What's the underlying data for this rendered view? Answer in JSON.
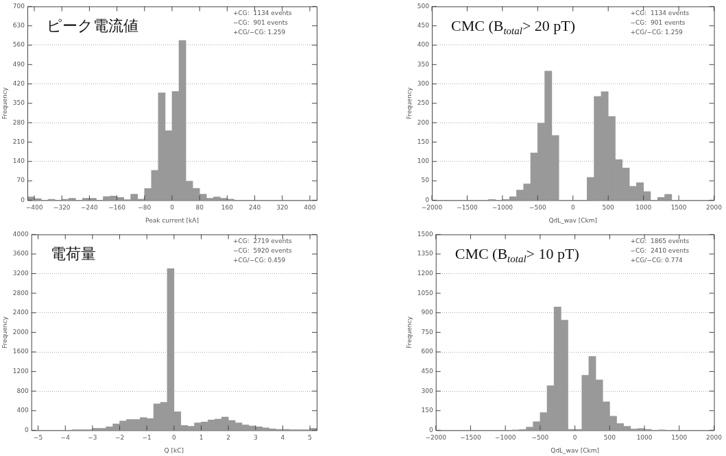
{
  "chart_data": [
    {
      "type": "histogram",
      "title": "ピーク電流値",
      "xlabel": "Peak current [kA]",
      "ylabel": "Frequency",
      "color": "#999999",
      "annotations": [
        "+CG:  1134 events",
        "−CG:  901 events",
        "+CG/−CG: 1.259"
      ],
      "bins": [
        -420,
        -400,
        -380,
        -360,
        -340,
        -320,
        -300,
        -280,
        -260,
        -240,
        -220,
        -200,
        -180,
        -160,
        -140,
        -120,
        -100,
        -80,
        -60,
        -40,
        -20,
        0,
        20,
        40,
        60,
        80,
        100,
        120,
        140,
        160,
        180,
        200,
        220,
        240,
        260,
        280,
        300,
        320,
        340,
        360,
        380,
        400,
        420
      ],
      "values": [
        12,
        6,
        0,
        3,
        0,
        3,
        7,
        0,
        7,
        7,
        0,
        13,
        15,
        10,
        2,
        22,
        4,
        42,
        108,
        388,
        251,
        393,
        577,
        69,
        43,
        22,
        7,
        12,
        7,
        4,
        0,
        0,
        0,
        0,
        0,
        0,
        0,
        0,
        0,
        0,
        0,
        0
      ],
      "xlim": [
        -420,
        420
      ],
      "xticks": [
        -400,
        -320,
        -240,
        -160,
        -80,
        0,
        80,
        160,
        240,
        320,
        400
      ],
      "ylim": [
        0,
        700
      ],
      "yticks": [
        0,
        70,
        140,
        210,
        280,
        350,
        420,
        490,
        560,
        630,
        700
      ],
      "grid": "y",
      "legend": false
    },
    {
      "type": "histogram",
      "title": "CMC (B$_{total}$> 20 pT)",
      "xlabel": "QdL_wav [Ckm]",
      "ylabel": "Frequency",
      "color": "#999999",
      "annotations": [
        "+CG:  1134 events",
        "−CG:  901 events",
        "+CG/−CG: 1.259"
      ],
      "bins": [
        -2000,
        -1900,
        -1800,
        -1700,
        -1600,
        -1500,
        -1400,
        -1300,
        -1200,
        -1100,
        -1000,
        -900,
        -800,
        -700,
        -600,
        -500,
        -400,
        -300,
        -200,
        -100,
        0,
        100,
        200,
        300,
        400,
        500,
        600,
        700,
        800,
        900,
        1000,
        1100,
        1200,
        1300,
        1400,
        1500,
        1600,
        1700,
        1800,
        1900,
        2000
      ],
      "values": [
        0,
        0,
        0,
        0,
        0,
        0,
        0,
        0,
        2,
        0,
        2,
        9,
        26,
        42,
        122,
        199,
        333,
        167,
        0,
        0,
        0,
        0,
        59,
        268,
        280,
        216,
        105,
        83,
        36,
        45,
        22,
        0,
        7,
        15,
        0,
        0,
        0,
        0,
        0,
        0
      ],
      "xlim": [
        -2000,
        2000
      ],
      "xticks": [
        -2000,
        -1500,
        -1000,
        -500,
        0,
        500,
        1000,
        1500,
        2000
      ],
      "ylim": [
        0,
        500
      ],
      "yticks": [
        0,
        50,
        100,
        150,
        200,
        250,
        300,
        350,
        400,
        450,
        500
      ],
      "grid": "y",
      "legend": false
    },
    {
      "type": "histogram",
      "title": "電荷量",
      "xlabel": "Q [kC]",
      "ylabel": "Frequency",
      "color": "#999999",
      "annotations": [
        "+CG:  2719 events",
        "−CG:  5920 events",
        "+CG/−CG: 0.459"
      ],
      "bins": [
        -5.25,
        -5,
        -4.75,
        -4.5,
        -4.25,
        -4,
        -3.75,
        -3.5,
        -3.25,
        -3,
        -2.75,
        -2.5,
        -2.25,
        -2,
        -1.75,
        -1.5,
        -1.25,
        -1,
        -0.75,
        -0.5,
        -0.25,
        0,
        0.25,
        0.5,
        0.75,
        1,
        1.25,
        1.5,
        1.75,
        2,
        2.25,
        2.5,
        2.75,
        3,
        3.25,
        3.5,
        3.75,
        4,
        4.25,
        4.5,
        4.75,
        5,
        5.25
      ],
      "values": [
        0,
        0,
        0,
        0,
        0,
        0,
        10,
        10,
        10,
        40,
        40,
        70,
        130,
        190,
        220,
        220,
        260,
        240,
        540,
        570,
        3300,
        380,
        100,
        80,
        150,
        170,
        210,
        230,
        270,
        200,
        150,
        110,
        90,
        70,
        50,
        30,
        20,
        20,
        10,
        10,
        10,
        40
      ],
      "xlim": [
        -5.25,
        5.25
      ],
      "xticks": [
        -5,
        -4,
        -3,
        -2,
        -1,
        0,
        1,
        2,
        3,
        4,
        5
      ],
      "ylim": [
        0,
        4000
      ],
      "yticks": [
        0,
        400,
        800,
        1200,
        1600,
        2000,
        2400,
        2800,
        3200,
        3600,
        4000
      ],
      "grid": "y",
      "legend": false
    },
    {
      "type": "histogram",
      "title": "CMC (B$_{total}$> 10 pT)",
      "xlabel": "QdL_wav [Ckm]",
      "ylabel": "Frequency",
      "color": "#999999",
      "annotations": [
        "+CG:  1865 events",
        "−CG:  2410 events",
        "+CG/−CG: 0.774"
      ],
      "bins": [
        -2000,
        -1900,
        -1800,
        -1700,
        -1600,
        -1500,
        -1400,
        -1300,
        -1200,
        -1100,
        -1000,
        -900,
        -800,
        -700,
        -600,
        -500,
        -400,
        -300,
        -200,
        -100,
        0,
        100,
        200,
        300,
        400,
        500,
        600,
        700,
        800,
        900,
        1000,
        1100,
        1200,
        1300,
        1400,
        1500,
        1600,
        1700,
        1800,
        1900,
        2000
      ],
      "values": [
        0,
        0,
        0,
        0,
        0,
        0,
        0,
        0,
        0,
        0,
        0,
        3,
        6,
        24,
        66,
        135,
        341,
        944,
        843,
        7,
        7,
        421,
        565,
        386,
        218,
        108,
        52,
        31,
        9,
        14,
        7,
        0,
        3,
        0,
        0,
        0,
        0,
        0,
        0,
        0
      ],
      "xlim": [
        -2000,
        2000
      ],
      "xticks": [
        -2000,
        -1500,
        -1000,
        -500,
        0,
        500,
        1000,
        1500,
        2000
      ],
      "ylim": [
        0,
        1500
      ],
      "yticks": [
        0,
        150,
        300,
        450,
        600,
        750,
        900,
        1050,
        1200,
        1350,
        1500
      ],
      "grid": "y",
      "legend": false
    }
  ]
}
